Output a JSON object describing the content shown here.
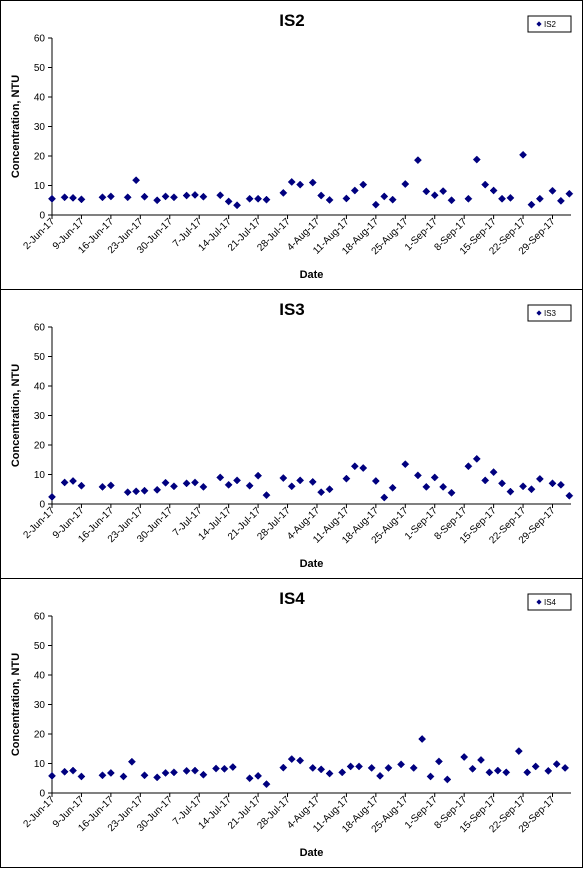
{
  "chart_data": [
    {
      "type": "scatter",
      "title": "IS2",
      "xlabel": "Date",
      "ylabel": "Concentration, NTU",
      "ylim": [
        0,
        60
      ],
      "yticks": [
        "0",
        "10",
        "20",
        "30",
        "40",
        "50",
        "60"
      ],
      "xlim": [
        "2017-06-02",
        "2017-09-29"
      ],
      "xticks": [
        "2-Jun-17",
        "9-Jun-17",
        "16-Jun-17",
        "23-Jun-17",
        "30-Jun-17",
        "7-Jul-17",
        "14-Jul-17",
        "21-Jul-17",
        "28-Jul-17",
        "4-Aug-17",
        "11-Aug-17",
        "18-Aug-17",
        "25-Aug-17",
        "1-Sep-17",
        "8-Sep-17",
        "15-Sep-17",
        "22-Sep-17",
        "29-Sep-17"
      ],
      "grid": false,
      "legend_position": "top-right",
      "marker_color": "#00007f",
      "series": [
        {
          "name": "IS2",
          "points": [
            {
              "x": "2017-06-02",
              "y": 5.5
            },
            {
              "x": "2017-06-05",
              "y": 6.0
            },
            {
              "x": "2017-06-07",
              "y": 5.8
            },
            {
              "x": "2017-06-09",
              "y": 5.3
            },
            {
              "x": "2017-06-14",
              "y": 6.0
            },
            {
              "x": "2017-06-16",
              "y": 6.3
            },
            {
              "x": "2017-06-20",
              "y": 6.0
            },
            {
              "x": "2017-06-22",
              "y": 11.8
            },
            {
              "x": "2017-06-24",
              "y": 6.2
            },
            {
              "x": "2017-06-27",
              "y": 5.0
            },
            {
              "x": "2017-06-29",
              "y": 6.3
            },
            {
              "x": "2017-07-01",
              "y": 6.0
            },
            {
              "x": "2017-07-04",
              "y": 6.6
            },
            {
              "x": "2017-07-06",
              "y": 6.8
            },
            {
              "x": "2017-07-08",
              "y": 6.2
            },
            {
              "x": "2017-07-12",
              "y": 6.7
            },
            {
              "x": "2017-07-14",
              "y": 4.6
            },
            {
              "x": "2017-07-16",
              "y": 3.3
            },
            {
              "x": "2017-07-19",
              "y": 5.5
            },
            {
              "x": "2017-07-21",
              "y": 5.5
            },
            {
              "x": "2017-07-23",
              "y": 5.2
            },
            {
              "x": "2017-07-27",
              "y": 7.5
            },
            {
              "x": "2017-07-29",
              "y": 11.2
            },
            {
              "x": "2017-07-31",
              "y": 10.3
            },
            {
              "x": "2017-08-03",
              "y": 11.0
            },
            {
              "x": "2017-08-05",
              "y": 6.6
            },
            {
              "x": "2017-08-07",
              "y": 5.1
            },
            {
              "x": "2017-08-11",
              "y": 5.6
            },
            {
              "x": "2017-08-13",
              "y": 8.3
            },
            {
              "x": "2017-08-15",
              "y": 10.3
            },
            {
              "x": "2017-08-18",
              "y": 3.5
            },
            {
              "x": "2017-08-20",
              "y": 6.3
            },
            {
              "x": "2017-08-22",
              "y": 5.2
            },
            {
              "x": "2017-08-25",
              "y": 10.5
            },
            {
              "x": "2017-08-28",
              "y": 18.6
            },
            {
              "x": "2017-08-30",
              "y": 8.0
            },
            {
              "x": "2017-09-01",
              "y": 6.7
            },
            {
              "x": "2017-09-03",
              "y": 8.1
            },
            {
              "x": "2017-09-05",
              "y": 5.0
            },
            {
              "x": "2017-09-09",
              "y": 5.5
            },
            {
              "x": "2017-09-11",
              "y": 18.8
            },
            {
              "x": "2017-09-13",
              "y": 10.3
            },
            {
              "x": "2017-09-15",
              "y": 8.3
            },
            {
              "x": "2017-09-17",
              "y": 5.5
            },
            {
              "x": "2017-09-19",
              "y": 5.8
            },
            {
              "x": "2017-09-22",
              "y": 20.4
            },
            {
              "x": "2017-09-24",
              "y": 3.5
            },
            {
              "x": "2017-09-26",
              "y": 5.5
            },
            {
              "x": "2017-09-29",
              "y": 8.2
            },
            {
              "x": "2017-10-01",
              "y": 4.8
            },
            {
              "x": "2017-10-03",
              "y": 7.2
            }
          ]
        }
      ]
    },
    {
      "type": "scatter",
      "title": "IS3",
      "xlabel": "Date",
      "ylabel": "Concentration, NTU",
      "ylim": [
        0,
        60
      ],
      "yticks": [
        "0",
        "10",
        "20",
        "30",
        "40",
        "50",
        "60"
      ],
      "xlim": [
        "2017-06-02",
        "2017-09-29"
      ],
      "xticks": [
        "2-Jun-17",
        "9-Jun-17",
        "16-Jun-17",
        "23-Jun-17",
        "30-Jun-17",
        "7-Jul-17",
        "14-Jul-17",
        "21-Jul-17",
        "28-Jul-17",
        "4-Aug-17",
        "11-Aug-17",
        "18-Aug-17",
        "25-Aug-17",
        "1-Sep-17",
        "8-Sep-17",
        "15-Sep-17",
        "22-Sep-17",
        "29-Sep-17"
      ],
      "grid": false,
      "legend_position": "top-right",
      "marker_color": "#00007f",
      "series": [
        {
          "name": "IS3",
          "points": [
            {
              "x": "2017-06-02",
              "y": 2.4
            },
            {
              "x": "2017-06-05",
              "y": 7.3
            },
            {
              "x": "2017-06-07",
              "y": 7.8
            },
            {
              "x": "2017-06-09",
              "y": 6.2
            },
            {
              "x": "2017-06-14",
              "y": 5.8
            },
            {
              "x": "2017-06-16",
              "y": 6.3
            },
            {
              "x": "2017-06-20",
              "y": 4.0
            },
            {
              "x": "2017-06-22",
              "y": 4.3
            },
            {
              "x": "2017-06-24",
              "y": 4.5
            },
            {
              "x": "2017-06-27",
              "y": 4.8
            },
            {
              "x": "2017-06-29",
              "y": 7.2
            },
            {
              "x": "2017-07-01",
              "y": 6.0
            },
            {
              "x": "2017-07-04",
              "y": 7.0
            },
            {
              "x": "2017-07-06",
              "y": 7.3
            },
            {
              "x": "2017-07-08",
              "y": 5.8
            },
            {
              "x": "2017-07-12",
              "y": 9.0
            },
            {
              "x": "2017-07-14",
              "y": 6.5
            },
            {
              "x": "2017-07-16",
              "y": 8.0
            },
            {
              "x": "2017-07-19",
              "y": 6.2
            },
            {
              "x": "2017-07-21",
              "y": 9.6
            },
            {
              "x": "2017-07-23",
              "y": 3.0
            },
            {
              "x": "2017-07-27",
              "y": 8.8
            },
            {
              "x": "2017-07-29",
              "y": 6.0
            },
            {
              "x": "2017-07-31",
              "y": 8.0
            },
            {
              "x": "2017-08-03",
              "y": 7.5
            },
            {
              "x": "2017-08-05",
              "y": 4.0
            },
            {
              "x": "2017-08-07",
              "y": 5.0
            },
            {
              "x": "2017-08-11",
              "y": 8.6
            },
            {
              "x": "2017-08-13",
              "y": 12.8
            },
            {
              "x": "2017-08-15",
              "y": 12.2
            },
            {
              "x": "2017-08-18",
              "y": 7.8
            },
            {
              "x": "2017-08-20",
              "y": 2.2
            },
            {
              "x": "2017-08-22",
              "y": 5.5
            },
            {
              "x": "2017-08-25",
              "y": 13.5
            },
            {
              "x": "2017-08-28",
              "y": 9.7
            },
            {
              "x": "2017-08-30",
              "y": 5.8
            },
            {
              "x": "2017-09-01",
              "y": 9.0
            },
            {
              "x": "2017-09-03",
              "y": 5.8
            },
            {
              "x": "2017-09-05",
              "y": 3.8
            },
            {
              "x": "2017-09-09",
              "y": 12.8
            },
            {
              "x": "2017-09-11",
              "y": 15.3
            },
            {
              "x": "2017-09-13",
              "y": 8.0
            },
            {
              "x": "2017-09-15",
              "y": 10.8
            },
            {
              "x": "2017-09-17",
              "y": 7.0
            },
            {
              "x": "2017-09-19",
              "y": 4.2
            },
            {
              "x": "2017-09-22",
              "y": 6.0
            },
            {
              "x": "2017-09-24",
              "y": 5.0
            },
            {
              "x": "2017-09-26",
              "y": 8.5
            },
            {
              "x": "2017-09-29",
              "y": 7.0
            },
            {
              "x": "2017-10-01",
              "y": 6.5
            },
            {
              "x": "2017-10-03",
              "y": 2.8
            }
          ]
        }
      ]
    },
    {
      "type": "scatter",
      "title": "IS4",
      "xlabel": "Date",
      "ylabel": "Concentration, NTU",
      "ylim": [
        0,
        60
      ],
      "yticks": [
        "0",
        "10",
        "20",
        "30",
        "40",
        "50",
        "60"
      ],
      "xlim": [
        "2017-06-02",
        "2017-09-29"
      ],
      "xticks": [
        "2-Jun-17",
        "9-Jun-17",
        "16-Jun-17",
        "23-Jun-17",
        "30-Jun-17",
        "7-Jul-17",
        "14-Jul-17",
        "21-Jul-17",
        "28-Jul-17",
        "4-Aug-17",
        "11-Aug-17",
        "18-Aug-17",
        "25-Aug-17",
        "1-Sep-17",
        "8-Sep-17",
        "15-Sep-17",
        "22-Sep-17",
        "29-Sep-17"
      ],
      "grid": false,
      "legend_position": "top-right",
      "marker_color": "#00007f",
      "series": [
        {
          "name": "IS4",
          "points": [
            {
              "x": "2017-06-02",
              "y": 5.8
            },
            {
              "x": "2017-06-05",
              "y": 7.2
            },
            {
              "x": "2017-06-07",
              "y": 7.6
            },
            {
              "x": "2017-06-09",
              "y": 5.6
            },
            {
              "x": "2017-06-14",
              "y": 6.0
            },
            {
              "x": "2017-06-16",
              "y": 6.8
            },
            {
              "x": "2017-06-19",
              "y": 5.6
            },
            {
              "x": "2017-06-21",
              "y": 10.6
            },
            {
              "x": "2017-06-24",
              "y": 6.0
            },
            {
              "x": "2017-06-27",
              "y": 5.3
            },
            {
              "x": "2017-06-29",
              "y": 6.8
            },
            {
              "x": "2017-07-01",
              "y": 7.0
            },
            {
              "x": "2017-07-04",
              "y": 7.5
            },
            {
              "x": "2017-07-06",
              "y": 7.6
            },
            {
              "x": "2017-07-08",
              "y": 6.2
            },
            {
              "x": "2017-07-11",
              "y": 8.3
            },
            {
              "x": "2017-07-13",
              "y": 8.2
            },
            {
              "x": "2017-07-15",
              "y": 8.8
            },
            {
              "x": "2017-07-19",
              "y": 5.0
            },
            {
              "x": "2017-07-21",
              "y": 5.8
            },
            {
              "x": "2017-07-23",
              "y": 3.0
            },
            {
              "x": "2017-07-27",
              "y": 8.6
            },
            {
              "x": "2017-07-29",
              "y": 11.5
            },
            {
              "x": "2017-07-31",
              "y": 11.0
            },
            {
              "x": "2017-08-03",
              "y": 8.5
            },
            {
              "x": "2017-08-05",
              "y": 8.0
            },
            {
              "x": "2017-08-07",
              "y": 6.6
            },
            {
              "x": "2017-08-10",
              "y": 7.0
            },
            {
              "x": "2017-08-12",
              "y": 9.0
            },
            {
              "x": "2017-08-14",
              "y": 9.0
            },
            {
              "x": "2017-08-17",
              "y": 8.5
            },
            {
              "x": "2017-08-19",
              "y": 5.8
            },
            {
              "x": "2017-08-21",
              "y": 8.5
            },
            {
              "x": "2017-08-24",
              "y": 9.7
            },
            {
              "x": "2017-08-27",
              "y": 8.5
            },
            {
              "x": "2017-08-29",
              "y": 18.3
            },
            {
              "x": "2017-08-31",
              "y": 5.6
            },
            {
              "x": "2017-09-02",
              "y": 10.7
            },
            {
              "x": "2017-09-04",
              "y": 4.6
            },
            {
              "x": "2017-09-08",
              "y": 12.2
            },
            {
              "x": "2017-09-10",
              "y": 8.2
            },
            {
              "x": "2017-09-12",
              "y": 11.2
            },
            {
              "x": "2017-09-14",
              "y": 7.0
            },
            {
              "x": "2017-09-16",
              "y": 7.6
            },
            {
              "x": "2017-09-18",
              "y": 7.0
            },
            {
              "x": "2017-09-21",
              "y": 14.2
            },
            {
              "x": "2017-09-23",
              "y": 7.0
            },
            {
              "x": "2017-09-25",
              "y": 9.0
            },
            {
              "x": "2017-09-28",
              "y": 7.5
            },
            {
              "x": "2017-09-30",
              "y": 9.8
            },
            {
              "x": "2017-10-02",
              "y": 8.5
            }
          ]
        }
      ]
    }
  ]
}
